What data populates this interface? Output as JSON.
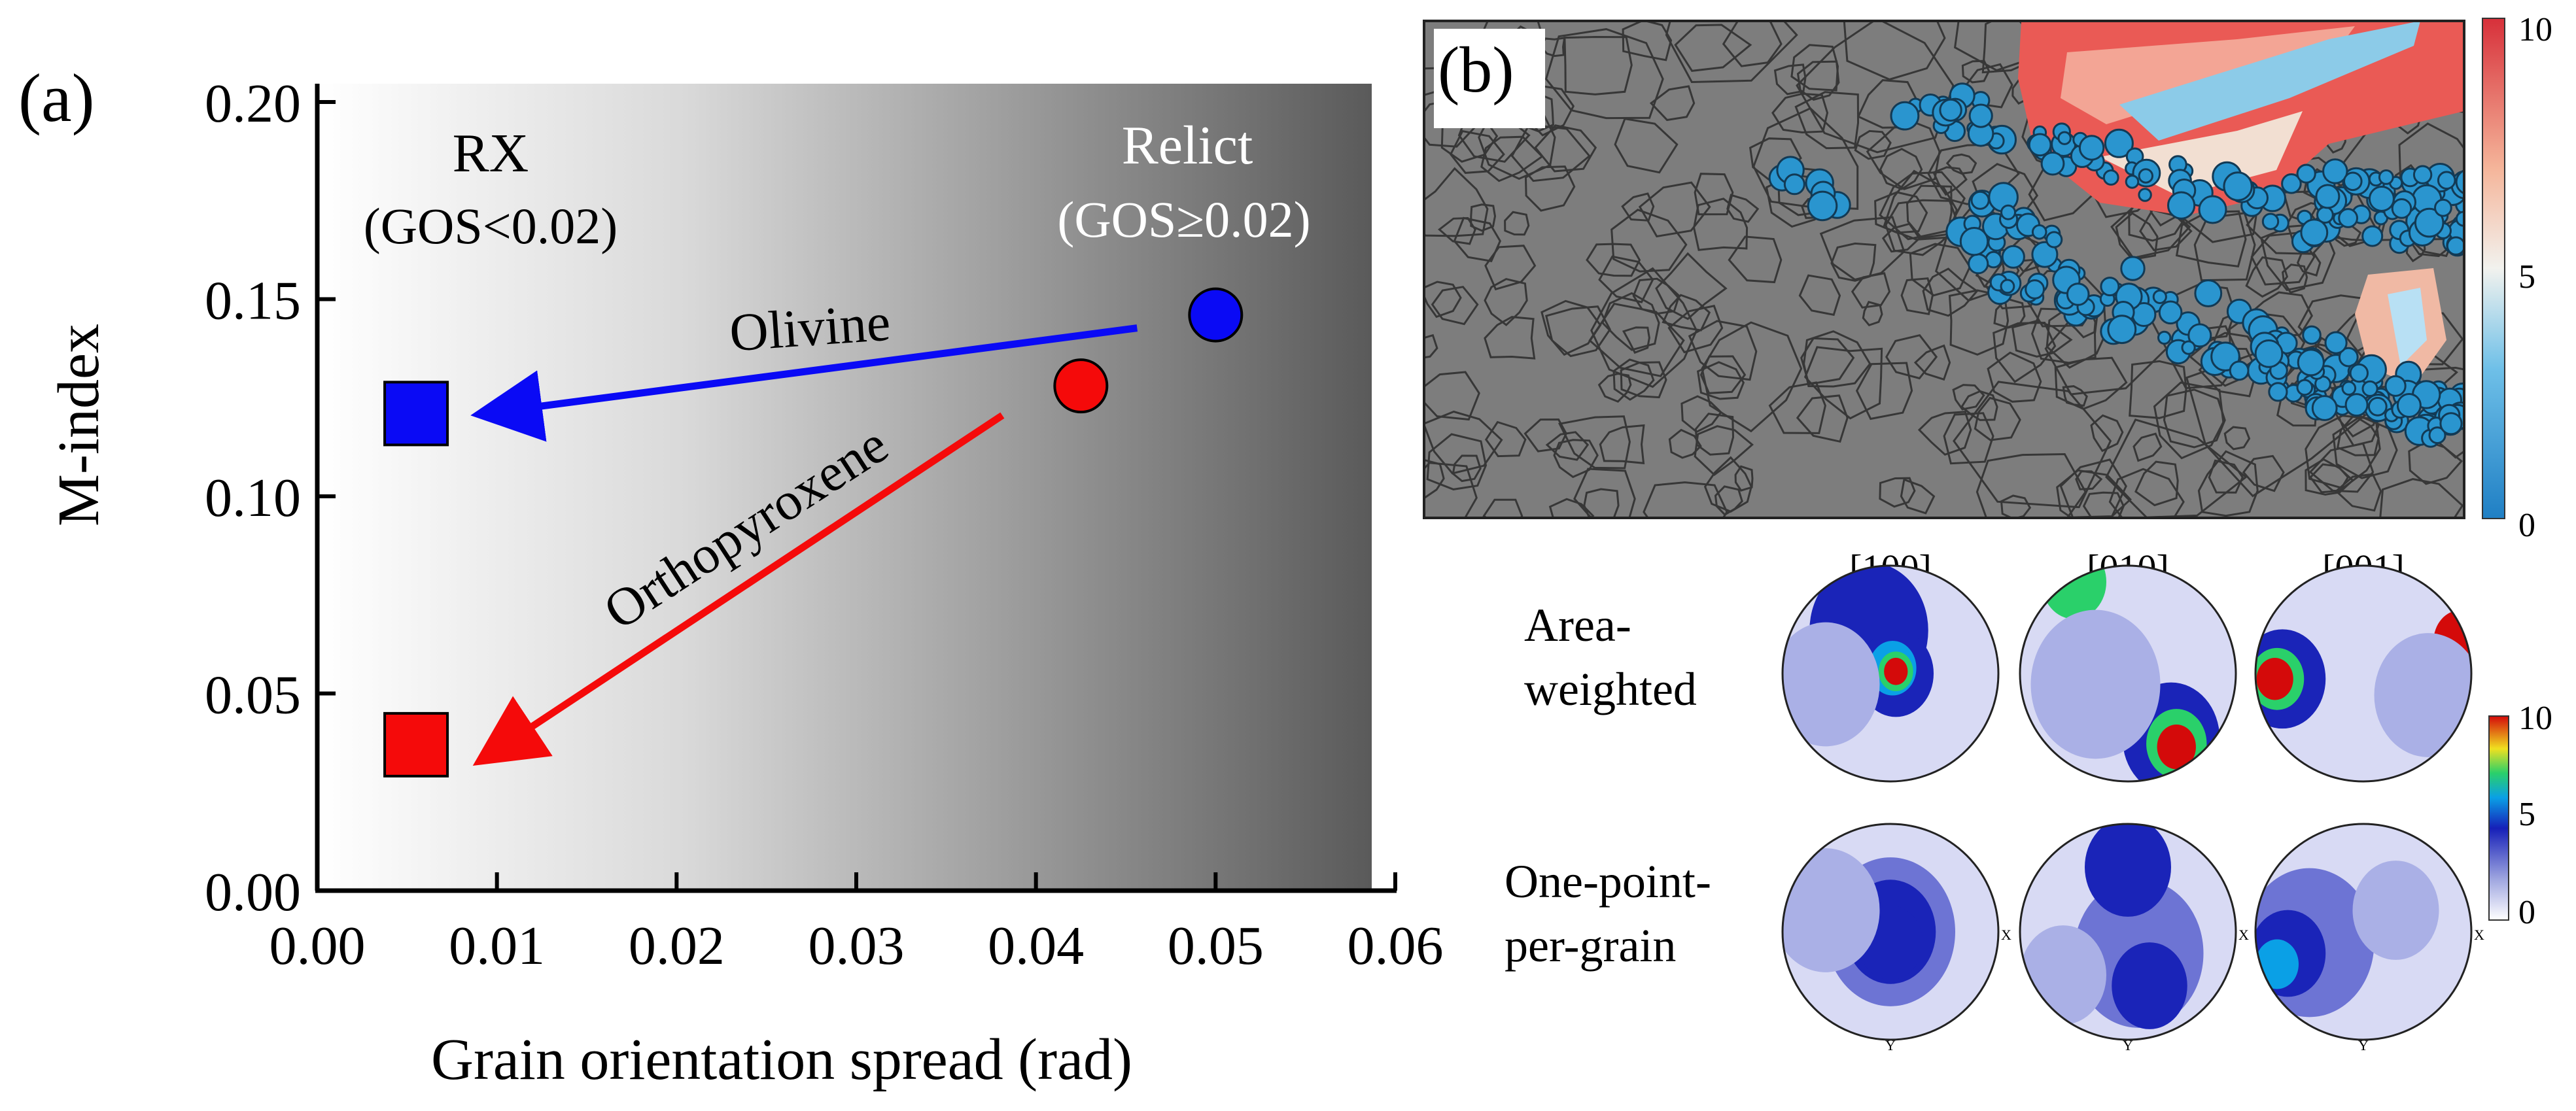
{
  "panel_a": {
    "label": "(a)",
    "chart_data": {
      "type": "scatter",
      "title": "",
      "xlabel": "Grain orientation spread (rad)",
      "ylabel": "M-index",
      "xlim": [
        0.0,
        0.06
      ],
      "ylim": [
        0.0,
        0.2
      ],
      "xticks": [
        "0.00",
        "0.01",
        "0.02",
        "0.03",
        "0.04",
        "0.05",
        "0.06"
      ],
      "xtick_values": [
        0.0,
        0.01,
        0.02,
        0.03,
        0.04,
        0.05,
        0.06
      ],
      "yticks": [
        "0.00",
        "0.05",
        "0.10",
        "0.15",
        "0.20"
      ],
      "ytick_values": [
        0.0,
        0.05,
        0.1,
        0.15,
        0.2
      ],
      "background": "white-to-grey gradient with increasing GOS",
      "series": [
        {
          "name": "Olivine",
          "color": "#0a0af5",
          "relict": {
            "x": 0.05,
            "y": 0.146
          },
          "rx": {
            "x": 0.0055,
            "y": 0.121
          }
        },
        {
          "name": "Orthopyroxene",
          "color": "#f50a0a",
          "relict": {
            "x": 0.0425,
            "y": 0.128
          },
          "rx": {
            "x": 0.0055,
            "y": 0.037
          }
        }
      ],
      "annotations": {
        "rx_label": "RX",
        "rx_condition": "(GOS<0.02)",
        "relict_label": "Relict",
        "relict_condition": "(GOS≥0.02)",
        "olivine_label": "Olivine",
        "opx_label": "Orthopyroxene"
      }
    }
  },
  "panel_b": {
    "label": "(b)",
    "map_colorbar": {
      "max": "10",
      "mid": "5",
      "min": "0"
    },
    "pole_figures": {
      "columns": [
        "[100]",
        "[010]",
        "[001]"
      ],
      "rows": [
        {
          "label_line1": "Area-",
          "label_line2": "weighted"
        },
        {
          "label_line1": "One-point-",
          "label_line2": "per-grain"
        }
      ],
      "axis_x": "X",
      "axis_y": "Y",
      "colorbar": {
        "max": "10",
        "mid": "5",
        "min": "0"
      }
    }
  }
}
